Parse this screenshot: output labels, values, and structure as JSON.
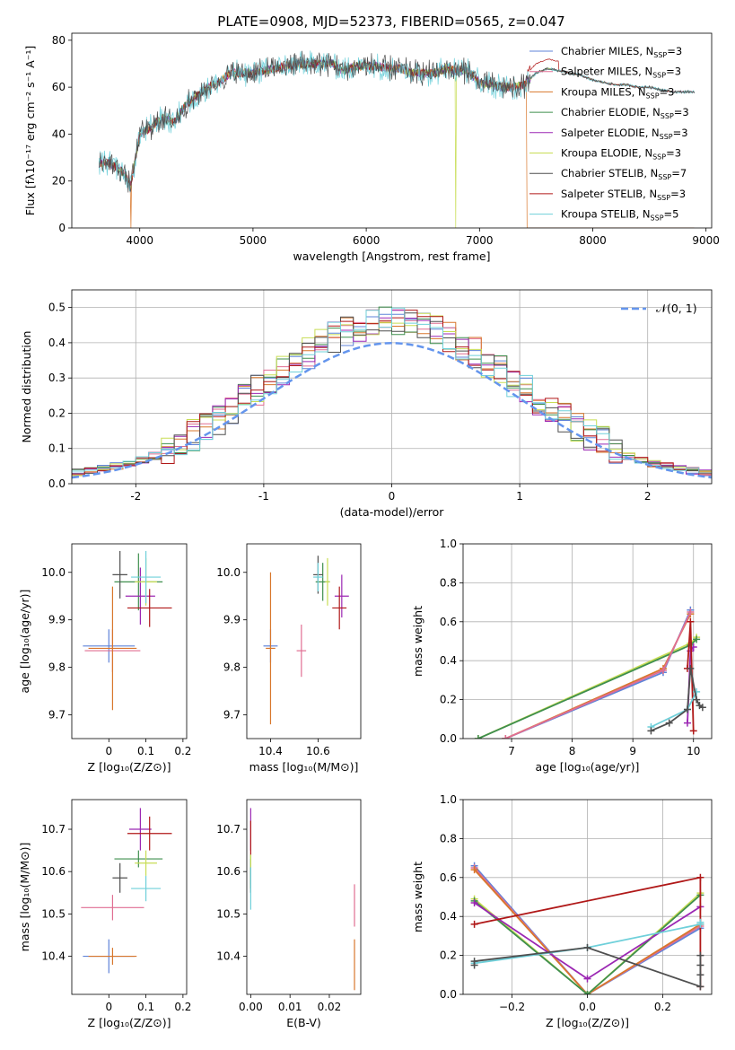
{
  "colors": {
    "chabrier_miles": "#5f83d8",
    "salpeter_miles": "#e06e92",
    "kroupa_miles": "#d8772c",
    "chabrier_elodie": "#3f8f4e",
    "salpeter_elodie": "#9b27b3",
    "kroupa_elodie": "#c8dd55",
    "chabrier_stelib": "#4f4f4f",
    "salpeter_stelib": "#b01818",
    "kroupa_stelib": "#6fd0da",
    "normal": "#6495ed"
  },
  "legend": [
    {
      "key": "chabrier_miles",
      "label": "Chabrier MILES, N",
      "sub": "SSP",
      "tail": "=3"
    },
    {
      "key": "salpeter_miles",
      "label": "Salpeter MILES, N",
      "sub": "SSP",
      "tail": "=3"
    },
    {
      "key": "kroupa_miles",
      "label": "Kroupa MILES, N",
      "sub": "SSP",
      "tail": "=3"
    },
    {
      "key": "chabrier_elodie",
      "label": "Chabrier ELODIE, N",
      "sub": "SSP",
      "tail": "=3"
    },
    {
      "key": "salpeter_elodie",
      "label": "Salpeter ELODIE, N",
      "sub": "SSP",
      "tail": "=3"
    },
    {
      "key": "kroupa_elodie",
      "label": "Kroupa ELODIE, N",
      "sub": "SSP",
      "tail": "=3"
    },
    {
      "key": "chabrier_stelib",
      "label": "Chabrier STELIB, N",
      "sub": "SSP",
      "tail": "=7"
    },
    {
      "key": "salpeter_stelib",
      "label": "Salpeter STELIB, N",
      "sub": "SSP",
      "tail": "=3"
    },
    {
      "key": "kroupa_stelib",
      "label": "Kroupa STELIB, N",
      "sub": "SSP",
      "tail": "=5"
    }
  ],
  "chart_data": [
    {
      "id": "spectrum",
      "type": "line",
      "title": "PLATE=0908, MJD=52373, FIBERID=0565, z=0.047",
      "xlabel": "wavelength [Angstrom, rest frame]",
      "ylabel": "Flux [fλ10⁻¹⁷ erg cm⁻² s⁻¹ A⁻¹]",
      "xlim": [
        3400,
        9050
      ],
      "ylim": [
        0,
        83
      ],
      "xticks": [
        4000,
        5000,
        6000,
        7000,
        8000,
        9000
      ],
      "yticks": [
        0,
        20,
        40,
        60,
        80
      ],
      "envelope": {
        "x": [
          3640,
          3700,
          3800,
          3860,
          3920,
          4000,
          4100,
          4200,
          4300,
          4400,
          4500,
          4600,
          4700,
          4800,
          4900,
          5000,
          5100,
          5200,
          5300,
          5400,
          5500,
          5600,
          5700,
          5800,
          5900,
          6000,
          6100,
          6200,
          6300,
          6400,
          6500,
          6600,
          6700,
          6800,
          6900,
          7000,
          7100,
          7200,
          7300,
          7400,
          7500,
          7600,
          7700,
          7800,
          7900,
          8000,
          8100,
          8200,
          8300,
          8400,
          8500,
          8600,
          8700,
          8800,
          8900
        ],
        "y": [
          27,
          28,
          26,
          23,
          18,
          40,
          43,
          47,
          45,
          52,
          56,
          60,
          62,
          66,
          66,
          66,
          67,
          68,
          69,
          70,
          70,
          70,
          70,
          67,
          69,
          69,
          69,
          68,
          68,
          66,
          66,
          66,
          68,
          67,
          67,
          62,
          61,
          60,
          60,
          61,
          66,
          68,
          67,
          66,
          65,
          63,
          62,
          61,
          61,
          60,
          60,
          59,
          58,
          58,
          58
        ]
      },
      "dips": [
        {
          "x": 3920,
          "series": "kroupa_miles"
        },
        {
          "x": 6790,
          "series": "kroupa_elodie"
        },
        {
          "x": 7420,
          "series": "kroupa_miles"
        }
      ],
      "noise_end": 7450
    },
    {
      "id": "residuals",
      "type": "step",
      "xlabel": "(data-model)/error",
      "ylabel": "Normed distribution",
      "xlim": [
        -2.5,
        2.5
      ],
      "ylim": [
        0,
        0.55
      ],
      "xticks": [
        -2,
        -1,
        0,
        1,
        2
      ],
      "yticks": [
        0.0,
        0.1,
        0.2,
        0.3,
        0.4,
        0.5
      ],
      "bin_width": 0.1,
      "legend_label": "𝒩(0, 1)"
    },
    {
      "id": "age_Z",
      "type": "errorbar",
      "xlabel": "Z [log₁₀(Z/Z⊙)]",
      "ylabel": "age  [log₁₀(age/yr)]",
      "xlim": [
        -0.1,
        0.21
      ],
      "ylim": [
        9.65,
        10.06
      ],
      "xticks": [
        0.0,
        0.1,
        0.2
      ],
      "yticks": [
        9.7,
        9.8,
        9.9,
        10.0
      ],
      "points": [
        {
          "s": "chabrier_miles",
          "x": 0.0,
          "xe": 0.07,
          "y": 9.845,
          "ye": 0.035
        },
        {
          "s": "salpeter_miles",
          "x": 0.01,
          "xe": 0.075,
          "y": 9.835,
          "ye": 0.045
        },
        {
          "s": "kroupa_miles",
          "x": 0.01,
          "xe": 0.065,
          "y": 9.84,
          "ye": 0.13
        },
        {
          "s": "chabrier_elodie",
          "x": 0.08,
          "xe": 0.065,
          "y": 9.98,
          "ye": 0.06
        },
        {
          "s": "salpeter_elodie",
          "x": 0.085,
          "xe": 0.04,
          "y": 9.95,
          "ye": 0.06
        },
        {
          "s": "kroupa_elodie",
          "x": 0.1,
          "xe": 0.03,
          "y": 9.98,
          "ye": 0.05
        },
        {
          "s": "chabrier_stelib",
          "x": 0.03,
          "xe": 0.02,
          "y": 9.995,
          "ye": 0.05
        },
        {
          "s": "salpeter_stelib",
          "x": 0.11,
          "xe": 0.06,
          "y": 9.925,
          "ye": 0.04
        },
        {
          "s": "kroupa_stelib",
          "x": 0.1,
          "xe": 0.04,
          "y": 9.99,
          "ye": 0.055
        }
      ]
    },
    {
      "id": "age_mass",
      "type": "errorbar",
      "xlabel": "mass [log₁₀(M/M⊙)]",
      "ylabel": "",
      "xlim": [
        10.3,
        10.78
      ],
      "ylim": [
        9.65,
        10.06
      ],
      "xticks": [
        10.4,
        10.6
      ],
      "yticks": [
        9.7,
        9.8,
        9.9,
        10.0
      ],
      "points": [
        {
          "s": "chabrier_miles",
          "x": 10.4,
          "xe": 0.03,
          "y": 9.845,
          "ye": 0.035
        },
        {
          "s": "salpeter_miles",
          "x": 10.53,
          "xe": 0.02,
          "y": 9.835,
          "ye": 0.055
        },
        {
          "s": "kroupa_miles",
          "x": 10.4,
          "xe": 0.02,
          "y": 9.84,
          "ye": 0.16
        },
        {
          "s": "chabrier_elodie",
          "x": 10.62,
          "xe": 0.03,
          "y": 9.98,
          "ye": 0.04
        },
        {
          "s": "salpeter_elodie",
          "x": 10.7,
          "xe": 0.03,
          "y": 9.95,
          "ye": 0.045
        },
        {
          "s": "kroupa_elodie",
          "x": 10.64,
          "xe": 0.01,
          "y": 9.98,
          "ye": 0.05
        },
        {
          "s": "chabrier_stelib",
          "x": 10.6,
          "xe": 0.02,
          "y": 9.995,
          "ye": 0.04
        },
        {
          "s": "salpeter_stelib",
          "x": 10.69,
          "xe": 0.03,
          "y": 9.925,
          "ye": 0.045
        },
        {
          "s": "kroupa_stelib",
          "x": 10.6,
          "xe": 0.02,
          "y": 9.99,
          "ye": 0.03
        }
      ]
    },
    {
      "id": "mw_age",
      "type": "line",
      "xlabel": "age  [log₁₀(age/yr)]",
      "ylabel": "mass weight",
      "xlim": [
        6.2,
        10.3
      ],
      "ylim": [
        0,
        1
      ],
      "xticks": [
        7,
        8,
        9,
        10
      ],
      "yticks": [
        0.0,
        0.2,
        0.4,
        0.6,
        0.8,
        1.0
      ],
      "series": [
        {
          "s": "kroupa_elodie",
          "x": [
            6.45,
            9.95,
            10.05
          ],
          "y": [
            0.0,
            0.49,
            0.52
          ]
        },
        {
          "s": "chabrier_elodie",
          "x": [
            6.45,
            9.95,
            10.05
          ],
          "y": [
            0.0,
            0.48,
            0.51
          ]
        },
        {
          "s": "chabrier_miles",
          "x": [
            6.9,
            9.5,
            9.95
          ],
          "y": [
            0.0,
            0.34,
            0.66
          ]
        },
        {
          "s": "kroupa_miles",
          "x": [
            6.9,
            9.5,
            9.95
          ],
          "y": [
            0.0,
            0.36,
            0.64
          ]
        },
        {
          "s": "salpeter_miles",
          "x": [
            6.9,
            9.5,
            9.95
          ],
          "y": [
            0.0,
            0.35,
            0.65
          ]
        },
        {
          "s": "salpeter_elodie",
          "x": [
            9.9,
            9.95,
            10.0
          ],
          "y": [
            0.08,
            0.45,
            0.47
          ]
        },
        {
          "s": "salpeter_stelib",
          "x": [
            9.9,
            9.95,
            10.0
          ],
          "y": [
            0.36,
            0.6,
            0.04
          ]
        },
        {
          "s": "kroupa_stelib",
          "x": [
            9.3,
            9.9,
            10.05
          ],
          "y": [
            0.06,
            0.15,
            0.24
          ]
        },
        {
          "s": "chabrier_stelib",
          "x": [
            9.3,
            9.6,
            9.9,
            9.95,
            10.05,
            10.1,
            10.15
          ],
          "y": [
            0.04,
            0.08,
            0.15,
            0.36,
            0.2,
            0.17,
            0.16
          ]
        }
      ]
    },
    {
      "id": "mass_Z",
      "type": "errorbar",
      "xlabel": "Z [log₁₀(Z/Z⊙)]",
      "ylabel": "mass [log₁₀(M/M⊙)]",
      "xlim": [
        -0.1,
        0.21
      ],
      "ylim": [
        10.31,
        10.77
      ],
      "xticks": [
        0.0,
        0.1,
        0.2
      ],
      "yticks": [
        10.4,
        10.5,
        10.6,
        10.7
      ],
      "points": [
        {
          "s": "chabrier_miles",
          "x": 0.0,
          "xe": 0.07,
          "y": 10.4,
          "ye": 0.04
        },
        {
          "s": "salpeter_miles",
          "x": 0.01,
          "xe": 0.085,
          "y": 10.515,
          "ye": 0.03
        },
        {
          "s": "kroupa_miles",
          "x": 0.01,
          "xe": 0.065,
          "y": 10.4,
          "ye": 0.02
        },
        {
          "s": "chabrier_elodie",
          "x": 0.08,
          "xe": 0.065,
          "y": 10.63,
          "ye": 0.02
        },
        {
          "s": "salpeter_elodie",
          "x": 0.085,
          "xe": 0.03,
          "y": 10.7,
          "ye": 0.05
        },
        {
          "s": "kroupa_elodie",
          "x": 0.1,
          "xe": 0.03,
          "y": 10.62,
          "ye": 0.03
        },
        {
          "s": "chabrier_stelib",
          "x": 0.03,
          "xe": 0.02,
          "y": 10.585,
          "ye": 0.035
        },
        {
          "s": "salpeter_stelib",
          "x": 0.11,
          "xe": 0.06,
          "y": 10.69,
          "ye": 0.04
        },
        {
          "s": "kroupa_stelib",
          "x": 0.1,
          "xe": 0.04,
          "y": 10.56,
          "ye": 0.03
        }
      ]
    },
    {
      "id": "mass_ebv",
      "type": "errorbar",
      "xlabel": "E(B-V)",
      "ylabel": "",
      "xlim": [
        -0.001,
        0.028
      ],
      "ylim": [
        10.31,
        10.77
      ],
      "xticks": [
        0.0,
        0.01,
        0.02
      ],
      "xticklabels": [
        "0.00",
        "0.01",
        "0.02"
      ],
      "yticks": [
        10.4,
        10.5,
        10.6,
        10.7
      ],
      "points": [
        {
          "s": "chabrier_miles",
          "x": 0.0,
          "xe": 0.0,
          "y": 10.6,
          "ye": 0.03
        },
        {
          "s": "salpeter_miles",
          "x": 0.0264,
          "xe": 0.0,
          "y": 10.52,
          "ye": 0.05
        },
        {
          "s": "kroupa_miles",
          "x": 0.0264,
          "xe": 0.0,
          "y": 10.38,
          "ye": 0.06
        },
        {
          "s": "chabrier_elodie",
          "x": 0.0,
          "xe": 0.0,
          "y": 10.6,
          "ye": 0.04
        },
        {
          "s": "salpeter_elodie",
          "x": 0.0,
          "xe": 0.0,
          "y": 10.7,
          "ye": 0.05
        },
        {
          "s": "kroupa_elodie",
          "x": 0.0,
          "xe": 0.0,
          "y": 10.6,
          "ye": 0.04
        },
        {
          "s": "chabrier_stelib",
          "x": 0.0,
          "xe": 0.0,
          "y": 10.58,
          "ye": 0.03
        },
        {
          "s": "salpeter_stelib",
          "x": 0.0,
          "xe": 0.0,
          "y": 10.68,
          "ye": 0.04
        },
        {
          "s": "kroupa_stelib",
          "x": 0.0,
          "xe": 0.0,
          "y": 10.56,
          "ye": 0.05
        }
      ]
    },
    {
      "id": "mw_Z",
      "type": "line",
      "xlabel": "Z [log₁₀(Z/Z⊙)]",
      "ylabel": "mass weight",
      "xlim": [
        -0.33,
        0.33
      ],
      "ylim": [
        0,
        1
      ],
      "xticks": [
        -0.2,
        0.0,
        0.2
      ],
      "xticklabels": [
        "−0.2",
        "0.0",
        "0.2"
      ],
      "yticks": [
        0.0,
        0.2,
        0.4,
        0.6,
        0.8,
        1.0
      ],
      "series": [
        {
          "s": "chabrier_miles",
          "x": [
            -0.3,
            0.0,
            0.3
          ],
          "y": [
            0.66,
            0.0,
            0.34
          ]
        },
        {
          "s": "salpeter_miles",
          "x": [
            -0.3,
            0.0,
            0.3
          ],
          "y": [
            0.65,
            0.0,
            0.35
          ]
        },
        {
          "s": "kroupa_miles",
          "x": [
            -0.3,
            0.0,
            0.3
          ],
          "y": [
            0.64,
            0.0,
            0.36
          ]
        },
        {
          "s": "kroupa_elodie",
          "x": [
            -0.3,
            0.0,
            0.3
          ],
          "y": [
            0.49,
            0.0,
            0.52
          ]
        },
        {
          "s": "chabrier_elodie",
          "x": [
            -0.3,
            0.0,
            0.3
          ],
          "y": [
            0.48,
            0.0,
            0.51
          ]
        },
        {
          "s": "salpeter_elodie",
          "x": [
            -0.3,
            0.0,
            0.3
          ],
          "y": [
            0.47,
            0.08,
            0.45
          ]
        },
        {
          "s": "salpeter_stelib",
          "x": [
            -0.3,
            0.3,
            0.3
          ],
          "y": [
            0.36,
            0.6,
            0.04
          ]
        },
        {
          "s": "kroupa_stelib",
          "x": [
            -0.3,
            0.0,
            0.3,
            0.3
          ],
          "y": [
            0.16,
            0.24,
            0.36,
            0.37
          ]
        },
        {
          "s": "chabrier_stelib",
          "x": [
            -0.3,
            -0.3,
            0.0,
            0.3,
            0.3,
            0.3,
            0.3
          ],
          "y": [
            0.15,
            0.17,
            0.24,
            0.04,
            0.1,
            0.15,
            0.2
          ]
        }
      ]
    }
  ]
}
